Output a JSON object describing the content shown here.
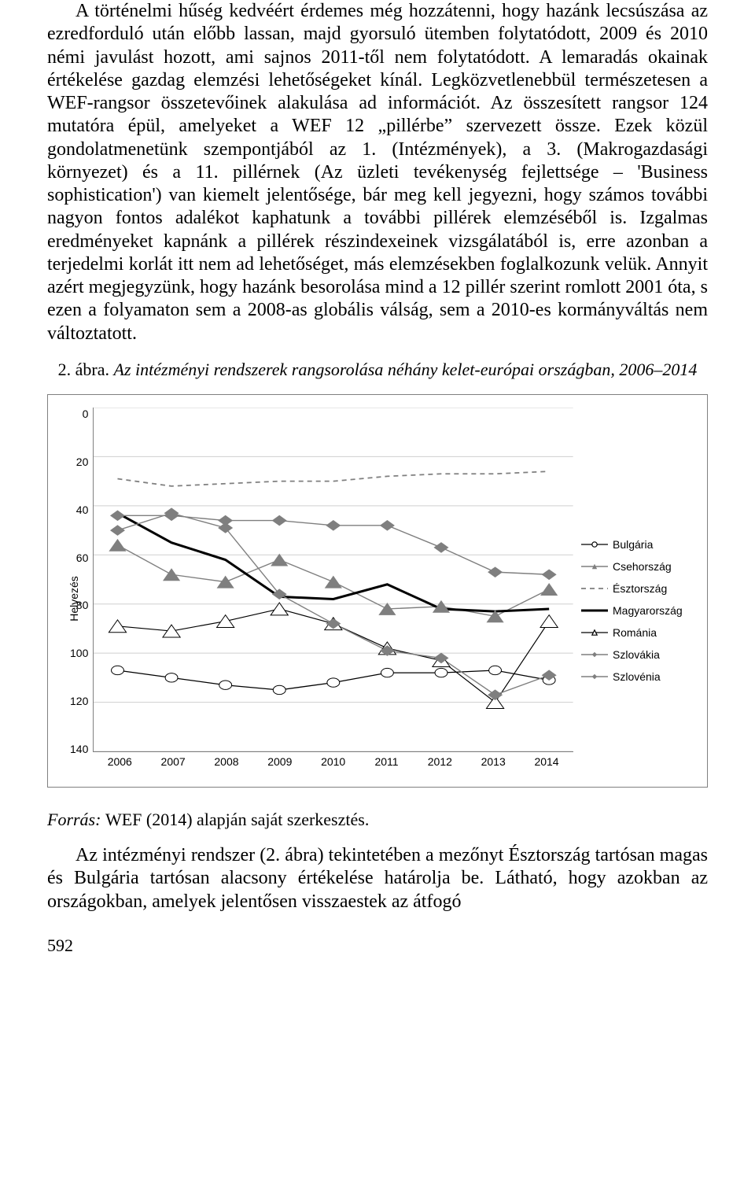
{
  "paragraph1": "A történelmi hűség kedvéért érdemes még hozzátenni, hogy hazánk lecsúszása az ezredforduló után előbb lassan, majd gyorsuló ütemben folytatódott, 2009 és 2010 némi javulást hozott, ami sajnos 2011-től nem folytatódott. A lemaradás okainak értékelése gazdag elemzési lehetőségeket kínál. Legközvetlenebbül természetesen a WEF-rangsor összetevőinek alakulása ad információt. Az összesített rangsor 124 mutatóra épül, amelyeket a WEF 12 „pillérbe” szervezett össze. Ezek közül gondolatmenetünk szempontjából az 1. (Intézmények), a 3. (Makrogazdasági környezet) és a 11. pillérnek (Az üzleti tevékenység fejlettsége – 'Business sophistication') van kiemelt jelentősége, bár meg kell jegyezni, hogy számos további nagyon fontos adalékot kaphatunk a további pillérek elemzéséből is. Izgalmas eredményeket kapnánk a pillérek részindexeinek vizsgálatából is, erre azonban a terjedelmi korlát itt nem ad lehetőséget, más elemzésekben foglalkozunk velük. Annyit azért megjegyzünk, hogy hazánk besorolása mind a 12 pillér szerint romlott 2001 óta, s ezen a folyamaton sem a 2008-as globális válság, sem a 2010-es kormányváltás nem változtatott.",
  "fig_caption_label": "2. ábra. ",
  "fig_caption_desc": "Az intézményi rendszerek rangsorolása néhány kelet-európai országban, 2006–2014",
  "source_label": "Forrás: ",
  "source_text": "WEF (2014) alapján saját szerkesztés.",
  "paragraph2": "Az intézményi rendszer (2. ábra) tekintetében a mezőnyt Észtország tartósan magas és Bulgária tartósan alacsony értékelése határolja be. Látható, hogy azokban az országokban, amelyek jelentősen visszaestek az átfogó",
  "page_number": "592",
  "chart": {
    "type": "line",
    "ylabel": "Helyezés",
    "ylim": [
      0,
      140
    ],
    "ytick_step": 20,
    "yticks": [
      0,
      20,
      40,
      60,
      80,
      100,
      120,
      140
    ],
    "xticks": [
      "2006",
      "2007",
      "2008",
      "2009",
      "2010",
      "2011",
      "2012",
      "2013",
      "2014"
    ],
    "xlim": [
      2006,
      2014
    ],
    "background_color": "#ffffff",
    "grid_color": "#cfcfcf",
    "border_color": "#808080",
    "label_fontsize": 14,
    "series": [
      {
        "name": "Bulgária",
        "color": "#000000",
        "stroke_width": 1.3,
        "marker": "circle-open",
        "dash": "none",
        "values": [
          107,
          110,
          113,
          115,
          112,
          108,
          108,
          107,
          111
        ]
      },
      {
        "name": "Csehország",
        "color": "#7f7f7f",
        "stroke_width": 1.4,
        "marker": "triangle-solid",
        "dash": "none",
        "values": [
          56,
          68,
          71,
          62,
          71,
          82,
          81,
          85,
          74
        ]
      },
      {
        "name": "Észtország",
        "color": "#7f7f7f",
        "stroke_width": 1.8,
        "marker": "none",
        "dash": "6,5",
        "values": [
          29,
          32,
          31,
          30,
          30,
          28,
          27,
          27,
          26
        ]
      },
      {
        "name": "Magyarország",
        "color": "#000000",
        "stroke_width": 3,
        "marker": "none",
        "dash": "none",
        "values": [
          43,
          55,
          62,
          77,
          78,
          72,
          82,
          83,
          82
        ]
      },
      {
        "name": "Románia",
        "color": "#000000",
        "stroke_width": 1.2,
        "marker": "triangle-open",
        "dash": "none",
        "values": [
          89,
          91,
          87,
          82,
          88,
          98,
          103,
          120,
          87
        ]
      },
      {
        "name": "Szlovákia",
        "color": "#7f7f7f",
        "stroke_width": 1.4,
        "marker": "diamond-solid",
        "dash": "none",
        "values": [
          50,
          43,
          49,
          76,
          88,
          99,
          102,
          117,
          109
        ]
      },
      {
        "name": "Szlovénia",
        "color": "#7f7f7f",
        "stroke_width": 1.4,
        "marker": "diamond-solid",
        "dash": "none",
        "values": [
          44,
          44,
          46,
          46,
          48,
          48,
          57,
          67,
          68
        ]
      }
    ]
  }
}
